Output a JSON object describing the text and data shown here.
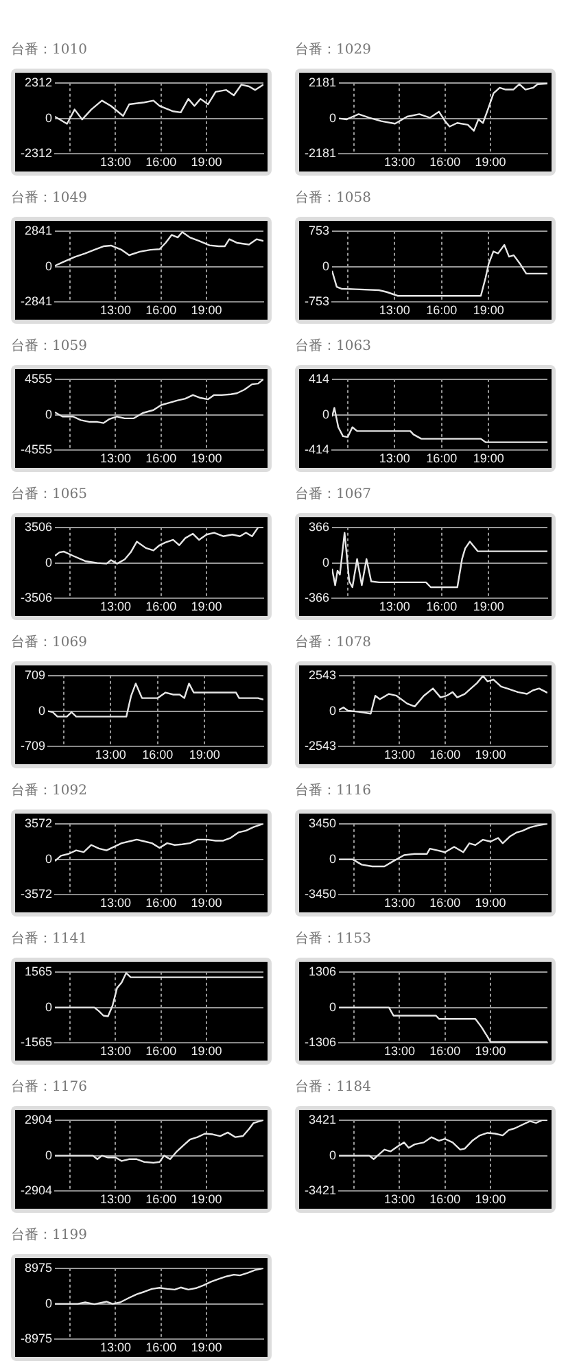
{
  "chart_data": [
    {
      "type": "line",
      "title": "台番：1010",
      "color": "#e6e6e6",
      "xlim": [
        9,
        22.75
      ],
      "xticks": [
        {
          "value": 10,
          "label": null
        },
        {
          "value": 13,
          "label": "13:00"
        },
        {
          "value": 16,
          "label": "16:00"
        },
        {
          "value": 19,
          "label": "19:00"
        }
      ],
      "ylim": [
        -2312,
        2312
      ],
      "yticks": [
        -2312,
        0,
        2312
      ],
      "grid": true,
      "x": [
        9,
        9.4,
        9.8,
        10.3,
        10.8,
        11.4,
        12.1,
        12.7,
        13.5,
        13.9,
        14.9,
        15.5,
        15.9,
        16.8,
        17.3,
        17.8,
        18.2,
        18.6,
        19.1,
        19.6,
        20.3,
        20.8,
        21.3,
        21.8,
        22.2,
        22.75
      ],
      "values": [
        120,
        -120,
        -350,
        580,
        -70,
        580,
        1160,
        810,
        160,
        920,
        1040,
        1160,
        810,
        460,
        390,
        1270,
        810,
        1270,
        920,
        1730,
        1850,
        1500,
        2200,
        2080,
        1850,
        2200
      ]
    },
    {
      "type": "line",
      "title": "台番：1029",
      "color": "#e6e6e6",
      "xlim": [
        9,
        22.75
      ],
      "xticks": [
        {
          "value": 10,
          "label": null
        },
        {
          "value": 13,
          "label": "13:00"
        },
        {
          "value": 16,
          "label": "16:00"
        },
        {
          "value": 19,
          "label": "19:00"
        }
      ],
      "ylim": [
        -2181,
        2181
      ],
      "yticks": [
        -2181,
        0,
        2181
      ],
      "grid": true,
      "x": [
        9,
        9.5,
        10.3,
        11,
        11.8,
        12.7,
        13.5,
        14.3,
        15,
        15.6,
        16,
        16.3,
        16.8,
        17.5,
        17.9,
        18.2,
        18.5,
        18.8,
        19.2,
        19.6,
        20,
        20.5,
        20.9,
        21.3,
        21.8,
        22.1,
        22.75
      ],
      "values": [
        0,
        -60,
        260,
        40,
        -170,
        -320,
        110,
        260,
        40,
        410,
        -170,
        -500,
        -280,
        -390,
        -760,
        -60,
        -280,
        480,
        1550,
        1880,
        1770,
        1770,
        2100,
        1770,
        1880,
        2100,
        2140
      ]
    },
    {
      "type": "line",
      "title": "台番：1049",
      "color": "#e6e6e6",
      "xlim": [
        9,
        22.75
      ],
      "xticks": [
        {
          "value": 10,
          "label": null
        },
        {
          "value": 13,
          "label": "13:00"
        },
        {
          "value": 16,
          "label": "16:00"
        },
        {
          "value": 19,
          "label": "19:00"
        }
      ],
      "ylim": [
        -2841,
        2841
      ],
      "yticks": [
        -2841,
        0,
        2841
      ],
      "grid": true,
      "x": [
        9,
        9.5,
        10.3,
        11,
        11.6,
        12.2,
        12.7,
        13.4,
        13.9,
        14.6,
        15.3,
        15.9,
        16.3,
        16.7,
        17.1,
        17.4,
        17.9,
        18.5,
        19.2,
        19.8,
        20.2,
        20.5,
        21,
        21.8,
        22.3,
        22.75
      ],
      "values": [
        60,
        340,
        770,
        1050,
        1340,
        1620,
        1680,
        1340,
        910,
        1190,
        1340,
        1390,
        1900,
        2530,
        2330,
        2760,
        2330,
        2050,
        1700,
        1620,
        1620,
        2190,
        1900,
        1760,
        2190,
        2050
      ]
    },
    {
      "type": "line",
      "title": "台番：1058",
      "color": "#e6e6e6",
      "xlim": [
        9,
        22.75
      ],
      "xticks": [
        {
          "value": 10,
          "label": null
        },
        {
          "value": 13,
          "label": "13:00"
        },
        {
          "value": 16,
          "label": "16:00"
        },
        {
          "value": 19,
          "label": "19:00"
        }
      ],
      "ylim": [
        -753,
        753
      ],
      "yticks": [
        -753,
        0,
        753
      ],
      "grid": true,
      "x": [
        9,
        9.3,
        9.6,
        10.5,
        12,
        12.5,
        13.2,
        15,
        17,
        18.5,
        18.8,
        19,
        19.3,
        19.6,
        20,
        20.3,
        20.6,
        21,
        21.4,
        22.75
      ],
      "values": [
        -90,
        -430,
        -470,
        -480,
        -500,
        -540,
        -620,
        -620,
        -620,
        -620,
        -240,
        60,
        320,
        280,
        460,
        210,
        240,
        60,
        -150,
        -150
      ]
    },
    {
      "type": "line",
      "title": "台番：1059",
      "color": "#e6e6e6",
      "xlim": [
        9,
        22.75
      ],
      "xticks": [
        {
          "value": 10,
          "label": null
        },
        {
          "value": 13,
          "label": "13:00"
        },
        {
          "value": 16,
          "label": "16:00"
        },
        {
          "value": 19,
          "label": "19:00"
        }
      ],
      "ylim": [
        -4555,
        4555
      ],
      "yticks": [
        -4555,
        0,
        4555
      ],
      "grid": true,
      "x": [
        9,
        9.5,
        10.2,
        10.7,
        11.3,
        11.8,
        12.2,
        12.6,
        13.1,
        13.6,
        14.2,
        14.8,
        15.5,
        16,
        16.5,
        17.1,
        17.6,
        18.1,
        18.6,
        19.1,
        19.5,
        20,
        20.6,
        21,
        21.5,
        22,
        22.4,
        22.75
      ],
      "values": [
        320,
        -230,
        -230,
        -690,
        -920,
        -920,
        -1060,
        -550,
        -230,
        -460,
        -460,
        230,
        600,
        1240,
        1520,
        1840,
        2070,
        2530,
        2160,
        1980,
        2530,
        2530,
        2620,
        2760,
        3220,
        3910,
        4000,
        4555
      ]
    },
    {
      "type": "line",
      "title": "台番：1063",
      "color": "#e6e6e6",
      "xlim": [
        9,
        22.75
      ],
      "xticks": [
        {
          "value": 10,
          "label": null
        },
        {
          "value": 13,
          "label": "13:00"
        },
        {
          "value": 16,
          "label": "16:00"
        },
        {
          "value": 19,
          "label": "19:00"
        }
      ],
      "ylim": [
        -414,
        414
      ],
      "yticks": [
        -414,
        0,
        414
      ],
      "grid": true,
      "x": [
        9,
        9.15,
        9.4,
        9.7,
        10,
        10.3,
        10.6,
        12,
        14,
        14.2,
        14.7,
        16.5,
        18.5,
        18.8,
        22.75
      ],
      "values": [
        -20,
        80,
        -145,
        -250,
        -260,
        -145,
        -190,
        -190,
        -190,
        -230,
        -280,
        -280,
        -280,
        -320,
        -320
      ]
    },
    {
      "type": "line",
      "title": "台番：1065",
      "color": "#e6e6e6",
      "xlim": [
        9,
        22.75
      ],
      "xticks": [
        {
          "value": 10,
          "label": null
        },
        {
          "value": 13,
          "label": "13:00"
        },
        {
          "value": 16,
          "label": "16:00"
        },
        {
          "value": 19,
          "label": "19:00"
        }
      ],
      "ylim": [
        -3506,
        3506
      ],
      "yticks": [
        -3506,
        0,
        3506
      ],
      "grid": true,
      "x": [
        9,
        9.3,
        9.6,
        10.2,
        11,
        11.8,
        12.4,
        12.7,
        13.1,
        13.6,
        14,
        14.4,
        15,
        15.5,
        15.9,
        16.3,
        16.8,
        17.2,
        17.6,
        18.1,
        18.5,
        19,
        19.5,
        20.1,
        20.7,
        21.2,
        21.6,
        22,
        22.4,
        22.75
      ],
      "values": [
        700,
        1050,
        1120,
        700,
        180,
        0,
        -70,
        280,
        -70,
        350,
        1050,
        2100,
        1470,
        1230,
        1750,
        2030,
        2280,
        1750,
        2450,
        2880,
        2280,
        2800,
        2980,
        2630,
        2800,
        2630,
        2980,
        2630,
        3500,
        3506
      ]
    },
    {
      "type": "line",
      "title": "台番：1067",
      "color": "#e6e6e6",
      "xlim": [
        9,
        22.75
      ],
      "xticks": [
        {
          "value": 10,
          "label": null
        },
        {
          "value": 13,
          "label": "13:00"
        },
        {
          "value": 16,
          "label": "16:00"
        },
        {
          "value": 19,
          "label": "19:00"
        }
      ],
      "ylim": [
        -366,
        366
      ],
      "yticks": [
        -366,
        0,
        366
      ],
      "grid": true,
      "x": [
        9,
        9.2,
        9.35,
        9.5,
        9.8,
        10.1,
        10.3,
        10.6,
        10.9,
        11.2,
        11.5,
        12,
        15,
        15.3,
        17,
        17.3,
        17.5,
        17.8,
        18.3,
        22.75
      ],
      "values": [
        -60,
        -230,
        -80,
        -120,
        310,
        -190,
        -250,
        40,
        -230,
        40,
        -190,
        -200,
        -200,
        -250,
        -250,
        40,
        150,
        220,
        120,
        120
      ]
    },
    {
      "type": "line",
      "title": "台番：1069",
      "color": "#e6e6e6",
      "xlim": [
        9,
        22.75
      ],
      "xticks": [
        {
          "value": 10,
          "label": null
        },
        {
          "value": 13,
          "label": "13:00"
        },
        {
          "value": 16,
          "label": "16:00"
        },
        {
          "value": 19,
          "label": "19:00"
        }
      ],
      "ylim": [
        -709,
        709
      ],
      "yticks": [
        -709,
        0,
        709
      ],
      "grid": true,
      "x": [
        9,
        9.3,
        9.6,
        10.2,
        10.5,
        10.8,
        14,
        14.3,
        14.6,
        15,
        16,
        16.5,
        17,
        17.4,
        17.7,
        18,
        18.3,
        21,
        21.2,
        22.4,
        22.75
      ],
      "values": [
        0,
        -20,
        -110,
        -110,
        -20,
        -110,
        -110,
        300,
        550,
        260,
        260,
        370,
        330,
        330,
        260,
        550,
        370,
        370,
        260,
        260,
        230
      ]
    },
    {
      "type": "line",
      "title": "台番：1078",
      "color": "#e6e6e6",
      "xlim": [
        9,
        22.75
      ],
      "xticks": [
        {
          "value": 10,
          "label": null
        },
        {
          "value": 13,
          "label": "13:00"
        },
        {
          "value": 16,
          "label": "16:00"
        },
        {
          "value": 19,
          "label": "19:00"
        }
      ],
      "ylim": [
        -2543,
        2543
      ],
      "yticks": [
        -2543,
        0,
        2543
      ],
      "grid": true,
      "x": [
        9,
        9.3,
        9.6,
        10.3,
        10.8,
        11.1,
        11.4,
        11.7,
        12.3,
        12.8,
        13.5,
        14,
        14.6,
        15.2,
        15.7,
        16.1,
        16.5,
        16.8,
        17.3,
        17.7,
        18.1,
        18.5,
        18.8,
        19.2,
        19.7,
        20.1,
        20.8,
        21.4,
        21.8,
        22.2,
        22.75
      ],
      "values": [
        80,
        260,
        30,
        -50,
        -130,
        -180,
        1100,
        850,
        1230,
        1100,
        540,
        330,
        1100,
        1620,
        980,
        1100,
        1360,
        980,
        1230,
        1620,
        2000,
        2520,
        2130,
        2250,
        1750,
        1620,
        1360,
        1230,
        1490,
        1620,
        1310
      ]
    },
    {
      "type": "line",
      "title": "台番：1092",
      "color": "#e6e6e6",
      "xlim": [
        9,
        22.75
      ],
      "xticks": [
        {
          "value": 10,
          "label": null
        },
        {
          "value": 13,
          "label": "13:00"
        },
        {
          "value": 16,
          "label": "16:00"
        },
        {
          "value": 19,
          "label": "19:00"
        }
      ],
      "ylim": [
        -3572,
        3572
      ],
      "yticks": [
        -3572,
        0,
        3572
      ],
      "grid": true,
      "x": [
        9,
        9.4,
        9.9,
        10.4,
        10.9,
        11.4,
        11.9,
        12.4,
        12.9,
        13.4,
        13.9,
        14.4,
        14.9,
        15.4,
        15.9,
        16.4,
        16.9,
        17.4,
        17.9,
        18.4,
        19,
        19.6,
        20.1,
        20.6,
        21.1,
        21.6,
        22.1,
        22.75
      ],
      "values": [
        -180,
        360,
        540,
        900,
        720,
        1440,
        1080,
        900,
        1260,
        1620,
        1800,
        1980,
        1800,
        1620,
        1150,
        1620,
        1440,
        1510,
        1620,
        1980,
        1980,
        1870,
        1870,
        2160,
        2700,
        2880,
        3240,
        3572
      ]
    },
    {
      "type": "line",
      "title": "台番：1116",
      "color": "#e6e6e6",
      "xlim": [
        9,
        22.75
      ],
      "xticks": [
        {
          "value": 10,
          "label": null
        },
        {
          "value": 13,
          "label": "13:00"
        },
        {
          "value": 16,
          "label": "16:00"
        },
        {
          "value": 19,
          "label": "19:00"
        }
      ],
      "ylim": [
        -3450,
        3450
      ],
      "yticks": [
        -3450,
        0,
        3450
      ],
      "grid": true,
      "x": [
        9,
        9.9,
        10.5,
        11.2,
        12,
        12.6,
        12.9,
        13.3,
        14,
        14.8,
        15,
        15.5,
        16,
        16.6,
        17.2,
        17.6,
        18,
        18.5,
        19,
        19.5,
        19.8,
        20.3,
        20.7,
        21.1,
        21.6,
        22.1,
        22.75
      ],
      "values": [
        0,
        0,
        -520,
        -690,
        -690,
        -170,
        70,
        410,
        520,
        520,
        1030,
        860,
        690,
        1210,
        690,
        1550,
        1380,
        1900,
        1720,
        2070,
        1550,
        2240,
        2590,
        2760,
        3100,
        3280,
        3450
      ]
    },
    {
      "type": "line",
      "title": "台番：1141",
      "color": "#e6e6e6",
      "xlim": [
        9,
        22.75
      ],
      "xticks": [
        {
          "value": 10,
          "label": null
        },
        {
          "value": 13,
          "label": "13:00"
        },
        {
          "value": 16,
          "label": "16:00"
        },
        {
          "value": 19,
          "label": "19:00"
        }
      ],
      "ylim": [
        -1565,
        1565
      ],
      "yticks": [
        -1565,
        0,
        1565
      ],
      "grid": true,
      "x": [
        9,
        11.6,
        11.9,
        12.2,
        12.5,
        12.8,
        13.1,
        13.4,
        13.7,
        14,
        22.75
      ],
      "values": [
        0,
        0,
        -160,
        -360,
        -390,
        80,
        860,
        1100,
        1520,
        1330,
        1330
      ]
    },
    {
      "type": "line",
      "title": "台番：1153",
      "color": "#e6e6e6",
      "xlim": [
        9,
        22.75
      ],
      "xticks": [
        {
          "value": 10,
          "label": null
        },
        {
          "value": 13,
          "label": "13:00"
        },
        {
          "value": 16,
          "label": "16:00"
        },
        {
          "value": 19,
          "label": "19:00"
        }
      ],
      "ylim": [
        -1306,
        1306
      ],
      "yticks": [
        -1306,
        0,
        1306
      ],
      "grid": true,
      "x": [
        9,
        12.3,
        12.6,
        15.4,
        15.6,
        18,
        18.4,
        18.8,
        19,
        22.75
      ],
      "values": [
        0,
        0,
        -300,
        -300,
        -420,
        -420,
        -720,
        -1080,
        -1270,
        -1270
      ]
    },
    {
      "type": "line",
      "title": "台番：1176",
      "color": "#e6e6e6",
      "xlim": [
        9,
        22.75
      ],
      "xticks": [
        {
          "value": 10,
          "label": null
        },
        {
          "value": 13,
          "label": "13:00"
        },
        {
          "value": 16,
          "label": "16:00"
        },
        {
          "value": 19,
          "label": "19:00"
        }
      ],
      "ylim": [
        -2904,
        2904
      ],
      "yticks": [
        -2904,
        0,
        2904
      ],
      "grid": true,
      "x": [
        9,
        11.5,
        11.8,
        12.1,
        12.5,
        13,
        13.4,
        13.9,
        14.4,
        14.9,
        15.5,
        15.9,
        16.2,
        16.6,
        17,
        17.5,
        17.9,
        18.4,
        18.9,
        19.4,
        19.9,
        20.4,
        20.9,
        21.4,
        21.8,
        22.1,
        22.75
      ],
      "values": [
        0,
        0,
        -290,
        0,
        -150,
        -150,
        -440,
        -290,
        -290,
        -520,
        -580,
        -520,
        0,
        -290,
        290,
        870,
        1310,
        1510,
        1800,
        1740,
        1600,
        1890,
        1510,
        1600,
        2180,
        2670,
        2904
      ]
    },
    {
      "type": "line",
      "title": "台番：1184",
      "color": "#e6e6e6",
      "xlim": [
        9,
        22.75
      ],
      "xticks": [
        {
          "value": 10,
          "label": null
        },
        {
          "value": 13,
          "label": "13:00"
        },
        {
          "value": 16,
          "label": "16:00"
        },
        {
          "value": 19,
          "label": "19:00"
        }
      ],
      "ylim": [
        -3421,
        3421
      ],
      "yticks": [
        -3421,
        0,
        3421
      ],
      "grid": true,
      "x": [
        9,
        11,
        11.3,
        11.6,
        12,
        12.4,
        12.9,
        13.3,
        13.6,
        14,
        14.6,
        15.1,
        15.6,
        16,
        16.5,
        17,
        17.3,
        17.8,
        18.3,
        18.8,
        19.3,
        19.8,
        20.2,
        20.6,
        21.1,
        21.6,
        22,
        22.4,
        22.75
      ],
      "values": [
        0,
        0,
        -340,
        70,
        580,
        410,
        920,
        1270,
        750,
        1090,
        1270,
        1780,
        1440,
        1610,
        1270,
        580,
        680,
        1440,
        1950,
        2190,
        2120,
        1950,
        2460,
        2630,
        2980,
        3320,
        3150,
        3421,
        3421
      ]
    },
    {
      "type": "line",
      "title": "台番：1199",
      "color": "#e6e6e6",
      "xlim": [
        9,
        22.75
      ],
      "xticks": [
        {
          "value": 10,
          "label": null
        },
        {
          "value": 13,
          "label": "13:00"
        },
        {
          "value": 16,
          "label": "16:00"
        },
        {
          "value": 19,
          "label": "19:00"
        }
      ],
      "ylim": [
        -8975,
        8975
      ],
      "yticks": [
        -8975,
        0,
        8975
      ],
      "grid": true,
      "x": [
        9,
        10.5,
        11,
        11.6,
        12.4,
        12.8,
        13.3,
        13.9,
        14.4,
        14.9,
        15.4,
        15.9,
        16.4,
        16.9,
        17.3,
        17.8,
        18.3,
        18.8,
        19.3,
        19.8,
        20.3,
        20.8,
        21.2,
        21.7,
        22.2,
        22.75
      ],
      "values": [
        0,
        0,
        360,
        -90,
        540,
        0,
        360,
        1530,
        2420,
        3050,
        3770,
        4040,
        3770,
        3590,
        4130,
        3590,
        3950,
        4670,
        5570,
        6280,
        6910,
        7360,
        7180,
        7810,
        8530,
        8975
      ]
    }
  ]
}
